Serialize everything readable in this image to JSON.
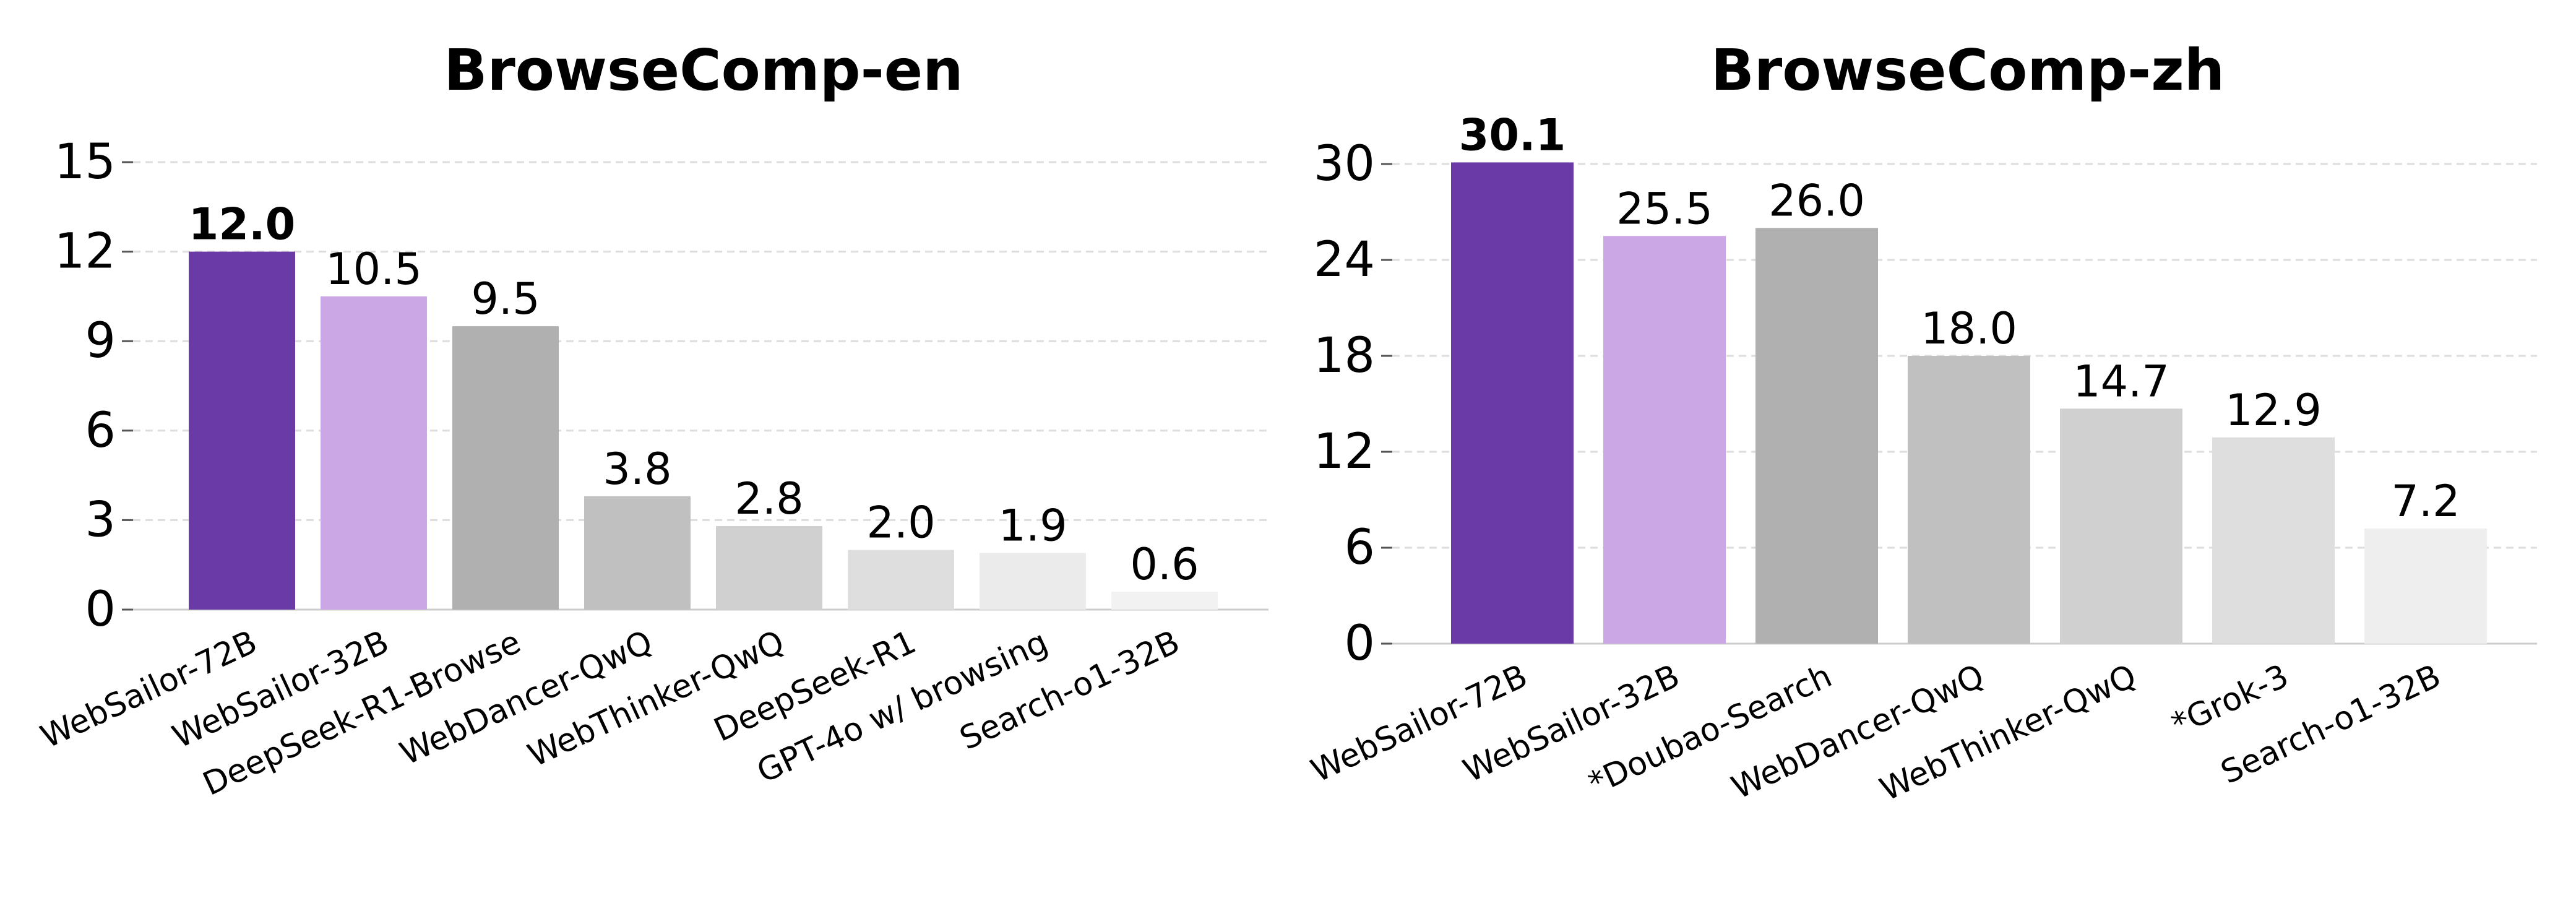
{
  "chart_data": [
    {
      "type": "bar",
      "title": "BrowseComp-en",
      "xlabel": "",
      "ylabel": "",
      "categories": [
        "WebSailor-72B",
        "WebSailor-32B",
        "DeepSeek-R1-Browse",
        "WebDancer-QwQ",
        "WebThinker-QwQ",
        "DeepSeek-R1",
        "GPT-4o w/ browsing",
        "Search-o1-32B"
      ],
      "values": [
        12.0,
        10.5,
        9.5,
        3.8,
        2.8,
        2.0,
        1.9,
        0.6
      ],
      "value_labels": [
        "12.0",
        "10.5",
        "9.5",
        "3.8",
        "2.8",
        "2.0",
        "1.9",
        "0.6"
      ],
      "colors": [
        "#6a3aa6",
        "#cca7e6",
        "#b0b0b0",
        "#c0c0c0",
        "#d0d0d0",
        "#dedede",
        "#ebebeb",
        "#f2f2f2"
      ],
      "highlight_index": 0,
      "ylim": [
        0,
        15
      ],
      "yticks": [
        0,
        3,
        6,
        9,
        12,
        15
      ],
      "ytick_labels": [
        "0",
        "3",
        "6",
        "9",
        "12",
        "15"
      ],
      "grid": true
    },
    {
      "type": "bar",
      "title": "BrowseComp-zh",
      "xlabel": "",
      "ylabel": "",
      "categories": [
        "WebSailor-72B",
        "WebSailor-32B",
        "*Doubao-Search",
        "WebDancer-QwQ",
        "WebThinker-QwQ",
        "*Grok-3",
        "Search-o1-32B"
      ],
      "values": [
        30.1,
        25.5,
        26.0,
        18.0,
        14.7,
        12.9,
        7.2
      ],
      "value_labels": [
        "30.1",
        "25.5",
        "26.0",
        "18.0",
        "14.7",
        "12.9",
        "7.2"
      ],
      "colors": [
        "#6a3aa6",
        "#cca7e6",
        "#b0b0b0",
        "#c0c0c0",
        "#d0d0d0",
        "#dedede",
        "#eeeeee"
      ],
      "highlight_index": 0,
      "ylim": [
        0,
        30
      ],
      "yticks": [
        0,
        6,
        12,
        18,
        24,
        30
      ],
      "ytick_labels": [
        "0",
        "6",
        "12",
        "18",
        "24",
        "30"
      ],
      "grid": true
    }
  ]
}
